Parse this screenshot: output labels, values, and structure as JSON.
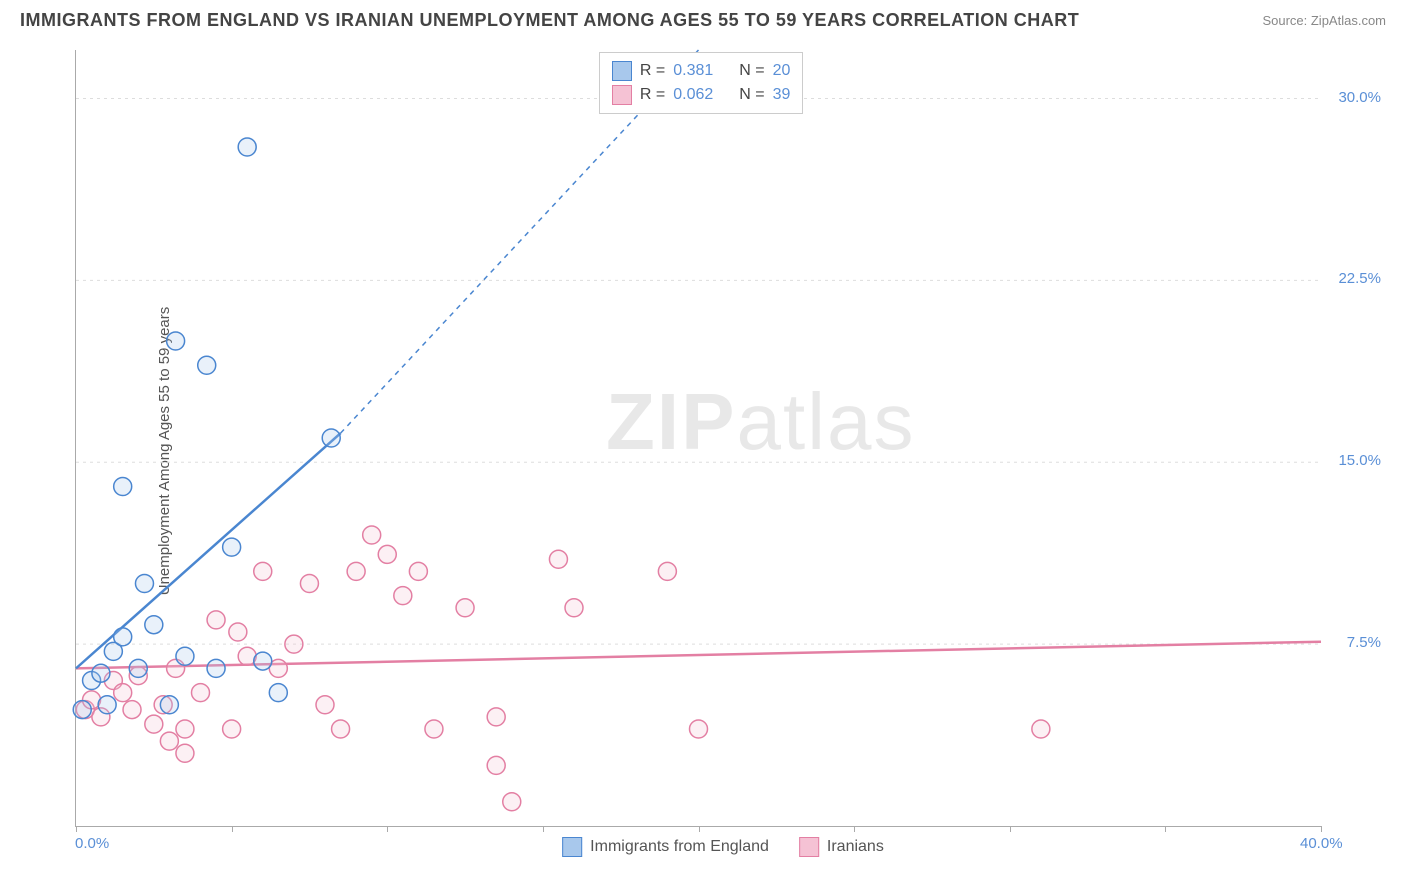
{
  "header": {
    "title": "IMMIGRANTS FROM ENGLAND VS IRANIAN UNEMPLOYMENT AMONG AGES 55 TO 59 YEARS CORRELATION CHART",
    "source": "Source: ZipAtlas.com"
  },
  "chart": {
    "type": "scatter",
    "y_axis_label": "Unemployment Among Ages 55 to 59 years",
    "xlim": [
      0,
      40
    ],
    "ylim": [
      0,
      32
    ],
    "x_ticks": [
      0,
      5,
      10,
      15,
      20,
      25,
      30,
      35,
      40
    ],
    "x_tick_labels": {
      "0": "0.0%",
      "40": "40.0%"
    },
    "y_ticks": [
      7.5,
      15.0,
      22.5,
      30.0
    ],
    "y_tick_labels": [
      "7.5%",
      "15.0%",
      "22.5%",
      "30.0%"
    ],
    "background_color": "#ffffff",
    "grid_color": "#dddddd",
    "axis_color": "#aaaaaa",
    "tick_label_color": "#5a8fd6",
    "marker_radius": 9,
    "marker_stroke_width": 1.5,
    "marker_fill_opacity": 0.25
  },
  "series_a": {
    "name": "Immigrants from England",
    "color_stroke": "#4a86d0",
    "color_fill": "#a8c8ec",
    "R": "0.381",
    "N": "20",
    "points": [
      [
        0.2,
        4.8
      ],
      [
        0.5,
        6.0
      ],
      [
        0.8,
        6.3
      ],
      [
        1.0,
        5.0
      ],
      [
        1.2,
        7.2
      ],
      [
        1.5,
        7.8
      ],
      [
        1.5,
        14.0
      ],
      [
        2.0,
        6.5
      ],
      [
        2.2,
        10.0
      ],
      [
        2.5,
        8.3
      ],
      [
        3.0,
        5.0
      ],
      [
        3.2,
        20.0
      ],
      [
        3.5,
        7.0
      ],
      [
        4.2,
        19.0
      ],
      [
        4.5,
        6.5
      ],
      [
        5.0,
        11.5
      ],
      [
        5.5,
        28.0
      ],
      [
        6.0,
        6.8
      ],
      [
        6.5,
        5.5
      ],
      [
        8.2,
        16.0
      ]
    ],
    "trend": {
      "x1": 0,
      "y1": 6.5,
      "x2": 8.5,
      "y2": 16.2,
      "x2_ext": 20,
      "y2_ext": 32,
      "stroke_width": 2.5
    }
  },
  "series_b": {
    "name": "Iranians",
    "color_stroke": "#e37fa3",
    "color_fill": "#f5c2d4",
    "R": "0.062",
    "N": "39",
    "points": [
      [
        0.3,
        4.8
      ],
      [
        0.5,
        5.2
      ],
      [
        0.8,
        4.5
      ],
      [
        1.2,
        6.0
      ],
      [
        1.5,
        5.5
      ],
      [
        1.8,
        4.8
      ],
      [
        2.0,
        6.2
      ],
      [
        2.5,
        4.2
      ],
      [
        2.8,
        5.0
      ],
      [
        3.0,
        3.5
      ],
      [
        3.2,
        6.5
      ],
      [
        3.5,
        4.0
      ],
      [
        3.5,
        3.0
      ],
      [
        4.0,
        5.5
      ],
      [
        4.5,
        8.5
      ],
      [
        5.0,
        4.0
      ],
      [
        5.2,
        8.0
      ],
      [
        5.5,
        7.0
      ],
      [
        6.0,
        10.5
      ],
      [
        6.5,
        6.5
      ],
      [
        7.0,
        7.5
      ],
      [
        7.5,
        10.0
      ],
      [
        8.0,
        5.0
      ],
      [
        8.5,
        4.0
      ],
      [
        9.0,
        10.5
      ],
      [
        9.5,
        12.0
      ],
      [
        10.0,
        11.2
      ],
      [
        10.5,
        9.5
      ],
      [
        11.0,
        10.5
      ],
      [
        11.5,
        4.0
      ],
      [
        12.5,
        9.0
      ],
      [
        13.5,
        4.5
      ],
      [
        13.5,
        2.5
      ],
      [
        14.0,
        1.0
      ],
      [
        15.5,
        11.0
      ],
      [
        16.0,
        9.0
      ],
      [
        19.0,
        10.5
      ],
      [
        20.0,
        4.0
      ],
      [
        31.0,
        4.0
      ]
    ],
    "trend": {
      "x1": 0,
      "y1": 6.5,
      "x2": 40,
      "y2": 7.6,
      "stroke_width": 2.5
    }
  },
  "legend_top": {
    "R_label": "R =",
    "N_label": "N ="
  },
  "watermark": {
    "zip": "ZIP",
    "atlas": "atlas"
  }
}
